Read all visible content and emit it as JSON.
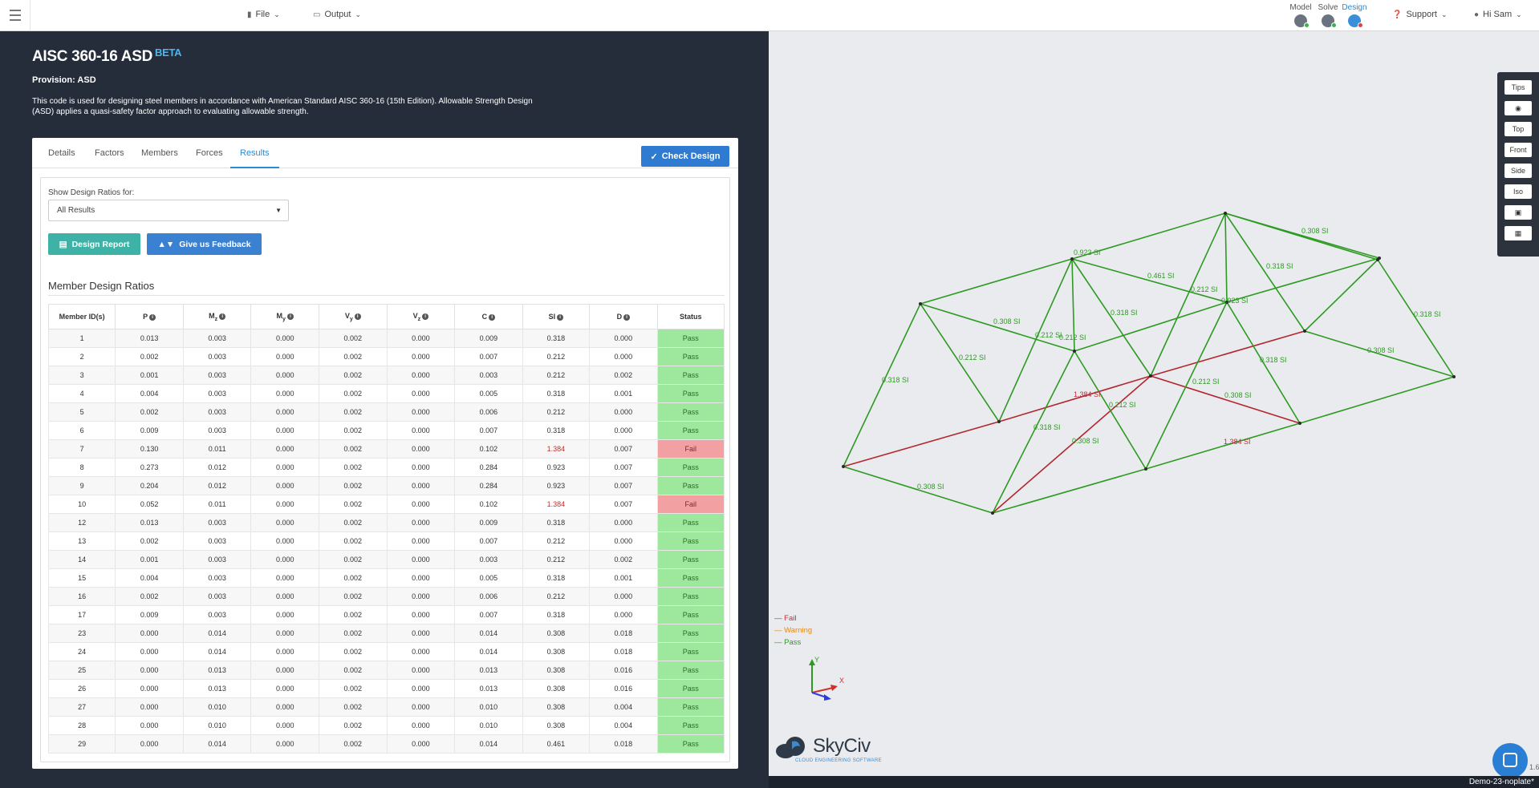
{
  "topbar": {
    "menus": [
      {
        "label": "File",
        "icon": "file-icon"
      },
      {
        "label": "Output",
        "icon": "monitor-icon"
      },
      {
        "label": "Support",
        "icon": "question-icon"
      },
      {
        "label": "Hi Sam",
        "icon": "user-icon"
      }
    ],
    "modes": [
      {
        "label": "Model",
        "status_color": "#3bb34a"
      },
      {
        "label": "Solve",
        "status_color": "#3bb34a"
      },
      {
        "label": "Design",
        "status_color": "#e54046"
      }
    ]
  },
  "header": {
    "title": "AISC 360-16 ASD",
    "badge": "BETA",
    "provision": "Provision: ASD",
    "description": "This code is used for designing steel members in accordance with American Standard AISC 360-16 (15th Edition). Allowable Strength Design (ASD) applies a quasi-safety factor approach to evaluating allowable strength."
  },
  "tabs": [
    "Details",
    "Factors",
    "Members",
    "Forces",
    "Results"
  ],
  "active_tab": "Results",
  "check_design_label": "Check Design",
  "show_ratios_label": "Show Design Ratios for:",
  "show_ratios_value": "All Results",
  "design_report_label": "Design Report",
  "feedback_label": "Give us Feedback",
  "section_title": "Member Design Ratios",
  "table": {
    "headers": [
      "Member ID(s)",
      "P",
      "M",
      "M",
      "V",
      "V",
      "C",
      "SI",
      "D",
      "Status"
    ],
    "header_subscripts": [
      "",
      "",
      "z",
      "y",
      "y",
      "z",
      "",
      "",
      "",
      ""
    ],
    "rows": [
      [
        "1",
        "0.013",
        "0.003",
        "0.000",
        "0.002",
        "0.000",
        "0.009",
        "0.318",
        "0.000",
        "Pass"
      ],
      [
        "2",
        "0.002",
        "0.003",
        "0.000",
        "0.002",
        "0.000",
        "0.007",
        "0.212",
        "0.000",
        "Pass"
      ],
      [
        "3",
        "0.001",
        "0.003",
        "0.000",
        "0.002",
        "0.000",
        "0.003",
        "0.212",
        "0.002",
        "Pass"
      ],
      [
        "4",
        "0.004",
        "0.003",
        "0.000",
        "0.002",
        "0.000",
        "0.005",
        "0.318",
        "0.001",
        "Pass"
      ],
      [
        "5",
        "0.002",
        "0.003",
        "0.000",
        "0.002",
        "0.000",
        "0.006",
        "0.212",
        "0.000",
        "Pass"
      ],
      [
        "6",
        "0.009",
        "0.003",
        "0.000",
        "0.002",
        "0.000",
        "0.007",
        "0.318",
        "0.000",
        "Pass"
      ],
      [
        "7",
        "0.130",
        "0.011",
        "0.000",
        "0.002",
        "0.000",
        "0.102",
        "1.384",
        "0.007",
        "Fail"
      ],
      [
        "8",
        "0.273",
        "0.012",
        "0.000",
        "0.002",
        "0.000",
        "0.284",
        "0.923",
        "0.007",
        "Pass"
      ],
      [
        "9",
        "0.204",
        "0.012",
        "0.000",
        "0.002",
        "0.000",
        "0.284",
        "0.923",
        "0.007",
        "Pass"
      ],
      [
        "10",
        "0.052",
        "0.011",
        "0.000",
        "0.002",
        "0.000",
        "0.102",
        "1.384",
        "0.007",
        "Fail"
      ],
      [
        "12",
        "0.013",
        "0.003",
        "0.000",
        "0.002",
        "0.000",
        "0.009",
        "0.318",
        "0.000",
        "Pass"
      ],
      [
        "13",
        "0.002",
        "0.003",
        "0.000",
        "0.002",
        "0.000",
        "0.007",
        "0.212",
        "0.000",
        "Pass"
      ],
      [
        "14",
        "0.001",
        "0.003",
        "0.000",
        "0.002",
        "0.000",
        "0.003",
        "0.212",
        "0.002",
        "Pass"
      ],
      [
        "15",
        "0.004",
        "0.003",
        "0.000",
        "0.002",
        "0.000",
        "0.005",
        "0.318",
        "0.001",
        "Pass"
      ],
      [
        "16",
        "0.002",
        "0.003",
        "0.000",
        "0.002",
        "0.000",
        "0.006",
        "0.212",
        "0.000",
        "Pass"
      ],
      [
        "17",
        "0.009",
        "0.003",
        "0.000",
        "0.002",
        "0.000",
        "0.007",
        "0.318",
        "0.000",
        "Pass"
      ],
      [
        "23",
        "0.000",
        "0.014",
        "0.000",
        "0.002",
        "0.000",
        "0.014",
        "0.308",
        "0.018",
        "Pass"
      ],
      [
        "24",
        "0.000",
        "0.014",
        "0.000",
        "0.002",
        "0.000",
        "0.014",
        "0.308",
        "0.018",
        "Pass"
      ],
      [
        "25",
        "0.000",
        "0.013",
        "0.000",
        "0.002",
        "0.000",
        "0.013",
        "0.308",
        "0.016",
        "Pass"
      ],
      [
        "26",
        "0.000",
        "0.013",
        "0.000",
        "0.002",
        "0.000",
        "0.013",
        "0.308",
        "0.016",
        "Pass"
      ],
      [
        "27",
        "0.000",
        "0.010",
        "0.000",
        "0.002",
        "0.000",
        "0.010",
        "0.308",
        "0.004",
        "Pass"
      ],
      [
        "28",
        "0.000",
        "0.010",
        "0.000",
        "0.002",
        "0.000",
        "0.010",
        "0.308",
        "0.004",
        "Pass"
      ],
      [
        "29",
        "0.000",
        "0.014",
        "0.000",
        "0.002",
        "0.000",
        "0.014",
        "0.461",
        "0.018",
        "Pass"
      ]
    ]
  },
  "viewport": {
    "tools": [
      "Tips",
      "eye-icon",
      "Top",
      "Front",
      "Side",
      "Iso",
      "camera-icon",
      "cube-icon"
    ],
    "legend": [
      {
        "label": "Fail",
        "color": "#c12d3a"
      },
      {
        "label": "Warning",
        "color": "#e3891f"
      },
      {
        "label": "Pass",
        "color": "#2d9a22"
      }
    ],
    "axis_labels": {
      "y": "Y",
      "x": "X"
    },
    "member_labels": [
      {
        "text": "0.308 SI",
        "color": "pass"
      },
      {
        "text": "0.923 SI",
        "color": "pass"
      },
      {
        "text": "0.318 SI",
        "color": "pass"
      },
      {
        "text": "0.461 SI",
        "color": "pass"
      },
      {
        "text": "0.212 SI",
        "color": "pass"
      },
      {
        "text": "0.923 SI",
        "color": "pass"
      },
      {
        "text": "0.318 SI",
        "color": "pass"
      },
      {
        "text": "0.308 SI",
        "color": "pass"
      },
      {
        "text": "0.212 SI",
        "color": "pass"
      },
      {
        "text": "0.318 SI",
        "color": "pass"
      },
      {
        "text": "0.212 SI",
        "color": "pass"
      },
      {
        "text": "0.318 SI",
        "color": "pass"
      },
      {
        "text": "0.212 SI",
        "color": "pass"
      },
      {
        "text": "0.308 SI",
        "color": "pass"
      },
      {
        "text": "0.318 SI",
        "color": "pass"
      },
      {
        "text": "1.384 SI",
        "color": "fail"
      },
      {
        "text": "0.212 SI",
        "color": "pass"
      },
      {
        "text": "0.212 SI",
        "color": "pass"
      },
      {
        "text": "0.308 SI",
        "color": "pass"
      },
      {
        "text": "0.318 SI",
        "color": "pass"
      },
      {
        "text": "0.308 SI",
        "color": "pass"
      },
      {
        "text": "1.384 SI",
        "color": "fail"
      },
      {
        "text": "0.308 SI",
        "color": "pass"
      }
    ],
    "logo_name": "SkyCiv",
    "logo_tag": "CLOUD ENGINEERING SOFTWARE",
    "version": "1.6",
    "filename": "Demo-23-noplate*"
  },
  "colors": {
    "accent": "#2a8bd6",
    "pass": "#2d9a22",
    "fail": "#c12d3a",
    "pass_cell": "#9de89c",
    "fail_cell": "#f2a0a2",
    "dark_panel": "#252d3b"
  }
}
